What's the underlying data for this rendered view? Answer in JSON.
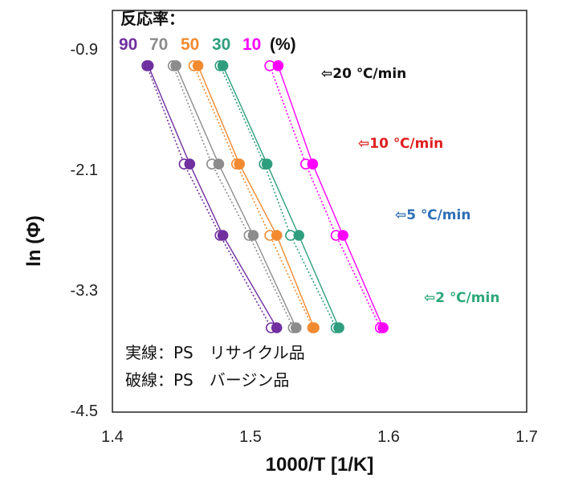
{
  "chart_data": {
    "type": "scatter",
    "xlabel": "1000/T [1/K]",
    "ylabel": "ln (Φ)",
    "xlim": [
      1.4,
      1.7
    ],
    "ylim": [
      -4.5,
      -0.5
    ],
    "x_ticks": [
      "1.4",
      "1.5",
      "1.6",
      "1.7"
    ],
    "y_ticks": [
      {
        "value": -0.9,
        "label": "-0.9"
      },
      {
        "value": -2.1,
        "label": "-2.1"
      },
      {
        "value": -3.3,
        "label": "-3.3"
      },
      {
        "value": -4.5,
        "label": "-4.5"
      }
    ],
    "legend": {
      "title": "反応率：",
      "entries": [
        {
          "label": "90",
          "color": "#7030a0"
        },
        {
          "label": "70",
          "color": "#8c8c8c"
        },
        {
          "label": "50",
          "color": "#f28a30"
        },
        {
          "label": "30",
          "color": "#2e9e7f"
        },
        {
          "label": "10",
          "color": "#ff00ff"
        }
      ],
      "unit": "(%)"
    },
    "heating_rates": [
      {
        "label": "⇦20 ℃/min",
        "ln_phi": -1.05,
        "color": "#111111"
      },
      {
        "label": "⇦10 ℃/min",
        "ln_phi": -1.97,
        "color": "#e02020"
      },
      {
        "label": "⇦5 ℃/min",
        "ln_phi": -2.68,
        "color": "#2f6fb5"
      },
      {
        "label": "⇦2 ℃/min",
        "ln_phi": -3.6,
        "color": "#2ca87a"
      }
    ],
    "y_levels": [
      -1.05,
      -2.03,
      -2.74,
      -3.66
    ],
    "series": [
      {
        "name": "90",
        "style": "solid",
        "label": "リサイクル品",
        "color": "#7030a0",
        "x": [
          1.426,
          1.456,
          1.48,
          1.519
        ]
      },
      {
        "name": "90",
        "style": "dotted",
        "label": "バージン品",
        "color": "#7030a0",
        "x": [
          1.425,
          1.452,
          1.478,
          1.515
        ]
      },
      {
        "name": "70",
        "style": "solid",
        "label": "リサイクル品",
        "color": "#8c8c8c",
        "x": [
          1.446,
          1.477,
          1.502,
          1.533
        ]
      },
      {
        "name": "70",
        "style": "dotted",
        "label": "バージン品",
        "color": "#8c8c8c",
        "x": [
          1.444,
          1.472,
          1.499,
          1.531
        ]
      },
      {
        "name": "50",
        "style": "solid",
        "label": "リサイクル品",
        "color": "#f28a30",
        "x": [
          1.462,
          1.492,
          1.519,
          1.546
        ]
      },
      {
        "name": "50",
        "style": "dotted",
        "label": "バージン品",
        "color": "#f28a30",
        "x": [
          1.459,
          1.49,
          1.514,
          1.545
        ]
      },
      {
        "name": "30",
        "style": "solid",
        "label": "リサイクル品",
        "color": "#2e9e7f",
        "x": [
          1.48,
          1.512,
          1.535,
          1.564
        ]
      },
      {
        "name": "30",
        "style": "dotted",
        "label": "バージン品",
        "color": "#2e9e7f",
        "x": [
          1.478,
          1.51,
          1.529,
          1.562
        ]
      },
      {
        "name": "10",
        "style": "solid",
        "label": "リサイクル品",
        "color": "#ff00ff",
        "x": [
          1.52,
          1.545,
          1.567,
          1.596
        ]
      },
      {
        "name": "10",
        "style": "dotted",
        "label": "バージン品",
        "color": "#ff00ff",
        "x": [
          1.514,
          1.54,
          1.562,
          1.594
        ]
      }
    ],
    "notes": [
      "実線：PS　リサイクル品",
      "破線：PS　バージン品"
    ]
  }
}
